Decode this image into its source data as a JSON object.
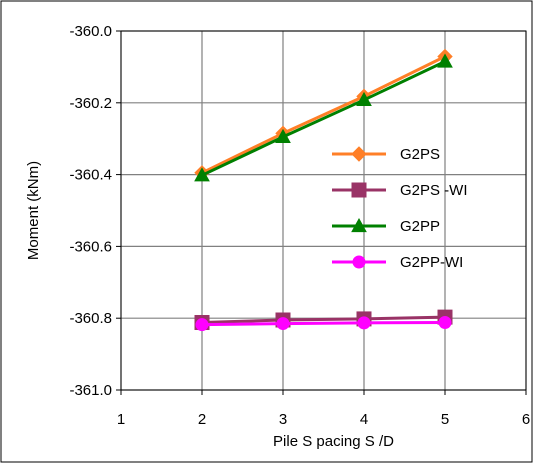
{
  "chart_data": {
    "type": "line",
    "title": "",
    "xlabel": "Pile S pacing S /D",
    "ylabel": "Moment (kNm)",
    "xlim": [
      1,
      6
    ],
    "ylim": [
      -361.0,
      -360.0
    ],
    "x_ticks": [
      1,
      2,
      3,
      4,
      5,
      6
    ],
    "x_tick_labels": [
      "1",
      "2",
      "3",
      "4",
      "5",
      "6"
    ],
    "y_ticks": [
      -360.0,
      -360.2,
      -360.4,
      -360.6,
      -360.8,
      -361.0
    ],
    "y_tick_labels": [
      "-360.0",
      "-360.2",
      "-360.4",
      "-360.6",
      "-360.8",
      "-361.0"
    ],
    "grid": true,
    "legend_position": "center-right",
    "x": [
      2,
      3,
      4,
      5
    ],
    "series": [
      {
        "name": "G2PS",
        "values": [
          -360.395,
          -360.285,
          -360.182,
          -360.071
        ],
        "color": "#FF7F27",
        "marker": "diamond"
      },
      {
        "name": "G2PS -WI",
        "values": [
          -360.812,
          -360.805,
          -360.802,
          -360.797
        ],
        "color": "#993366",
        "marker": "square"
      },
      {
        "name": "G2PP",
        "values": [
          -360.402,
          -360.295,
          -360.192,
          -360.085
        ],
        "color": "#008000",
        "marker": "triangle"
      },
      {
        "name": "G2PP-WI",
        "values": [
          -360.818,
          -360.815,
          -360.813,
          -360.812
        ],
        "color": "#FF00FF",
        "marker": "circle"
      }
    ]
  }
}
